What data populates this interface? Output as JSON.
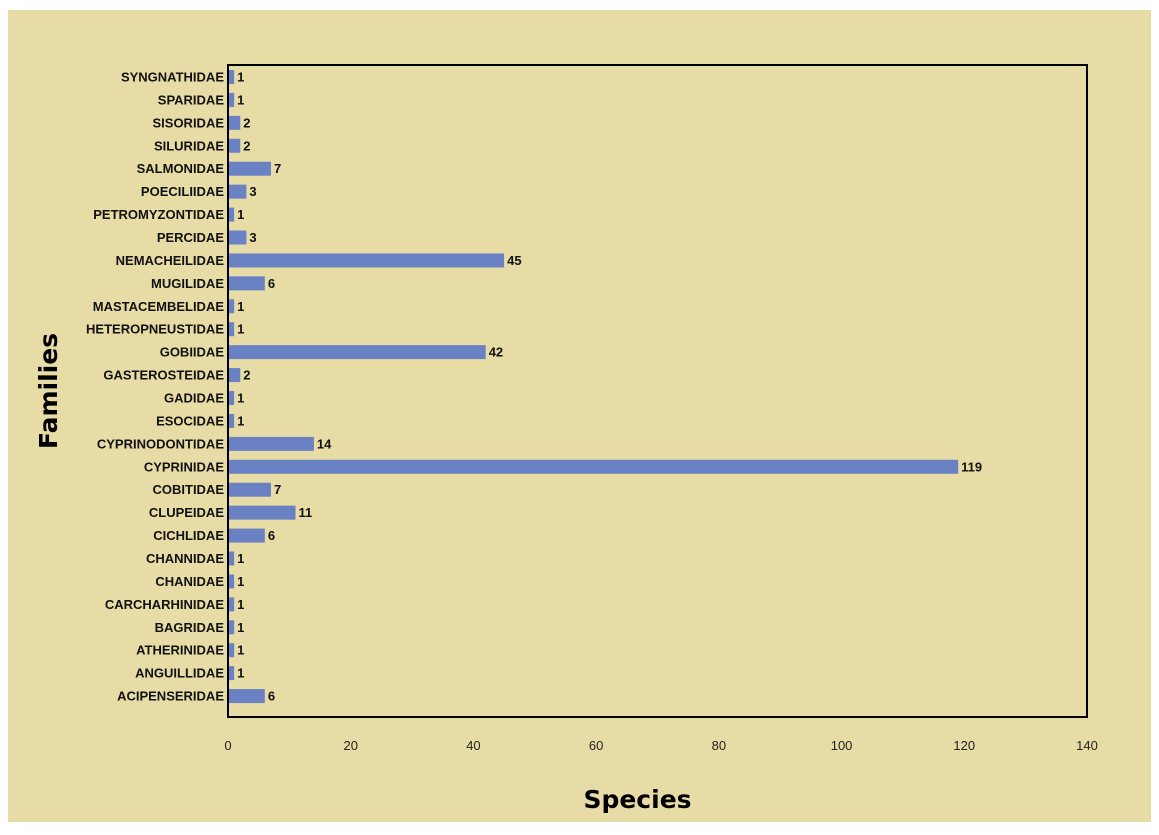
{
  "chart_data": {
    "type": "bar",
    "orientation": "horizontal",
    "title": "",
    "xlabel": "Species",
    "ylabel": "Families",
    "xlim": [
      0,
      140
    ],
    "x_ticks": [
      0,
      20,
      40,
      60,
      80,
      100,
      120,
      140
    ],
    "grid": false,
    "legend": "none",
    "colors": {
      "bar": "#6a82c4",
      "background": "#e8dca6",
      "frame": "#000000"
    },
    "categories": [
      "SYNGNATHIDAE",
      "SPARIDAE",
      "SISORIDAE",
      "SILURIDAE",
      "SALMONIDAE",
      "POECILIIDAE",
      "PETROMYZONTIDAE",
      "PERCIDAE",
      "NEMACHEILIDAE",
      "MUGILIDAE",
      "MASTACEMBELIDAE",
      "HETEROPNEUSTIDAE",
      "GOBIIDAE",
      "GASTEROSTEIDAE",
      "GADIDAE",
      "ESOCIDAE",
      "CYPRINODONTIDAE",
      "CYPRINIDAE",
      "COBITIDAE",
      "CLUPEIDAE",
      "CICHLIDAE",
      "CHANNIDAE",
      "CHANIDAE",
      "CARCHARHINIDAE",
      "BAGRIDAE",
      "ATHERINIDAE",
      "ANGUILLIDAE",
      "ACIPENSERIDAE"
    ],
    "values": [
      1,
      1,
      2,
      2,
      7,
      3,
      1,
      3,
      45,
      6,
      1,
      1,
      42,
      2,
      1,
      1,
      14,
      119,
      7,
      11,
      6,
      1,
      1,
      1,
      1,
      1,
      1,
      6
    ]
  }
}
